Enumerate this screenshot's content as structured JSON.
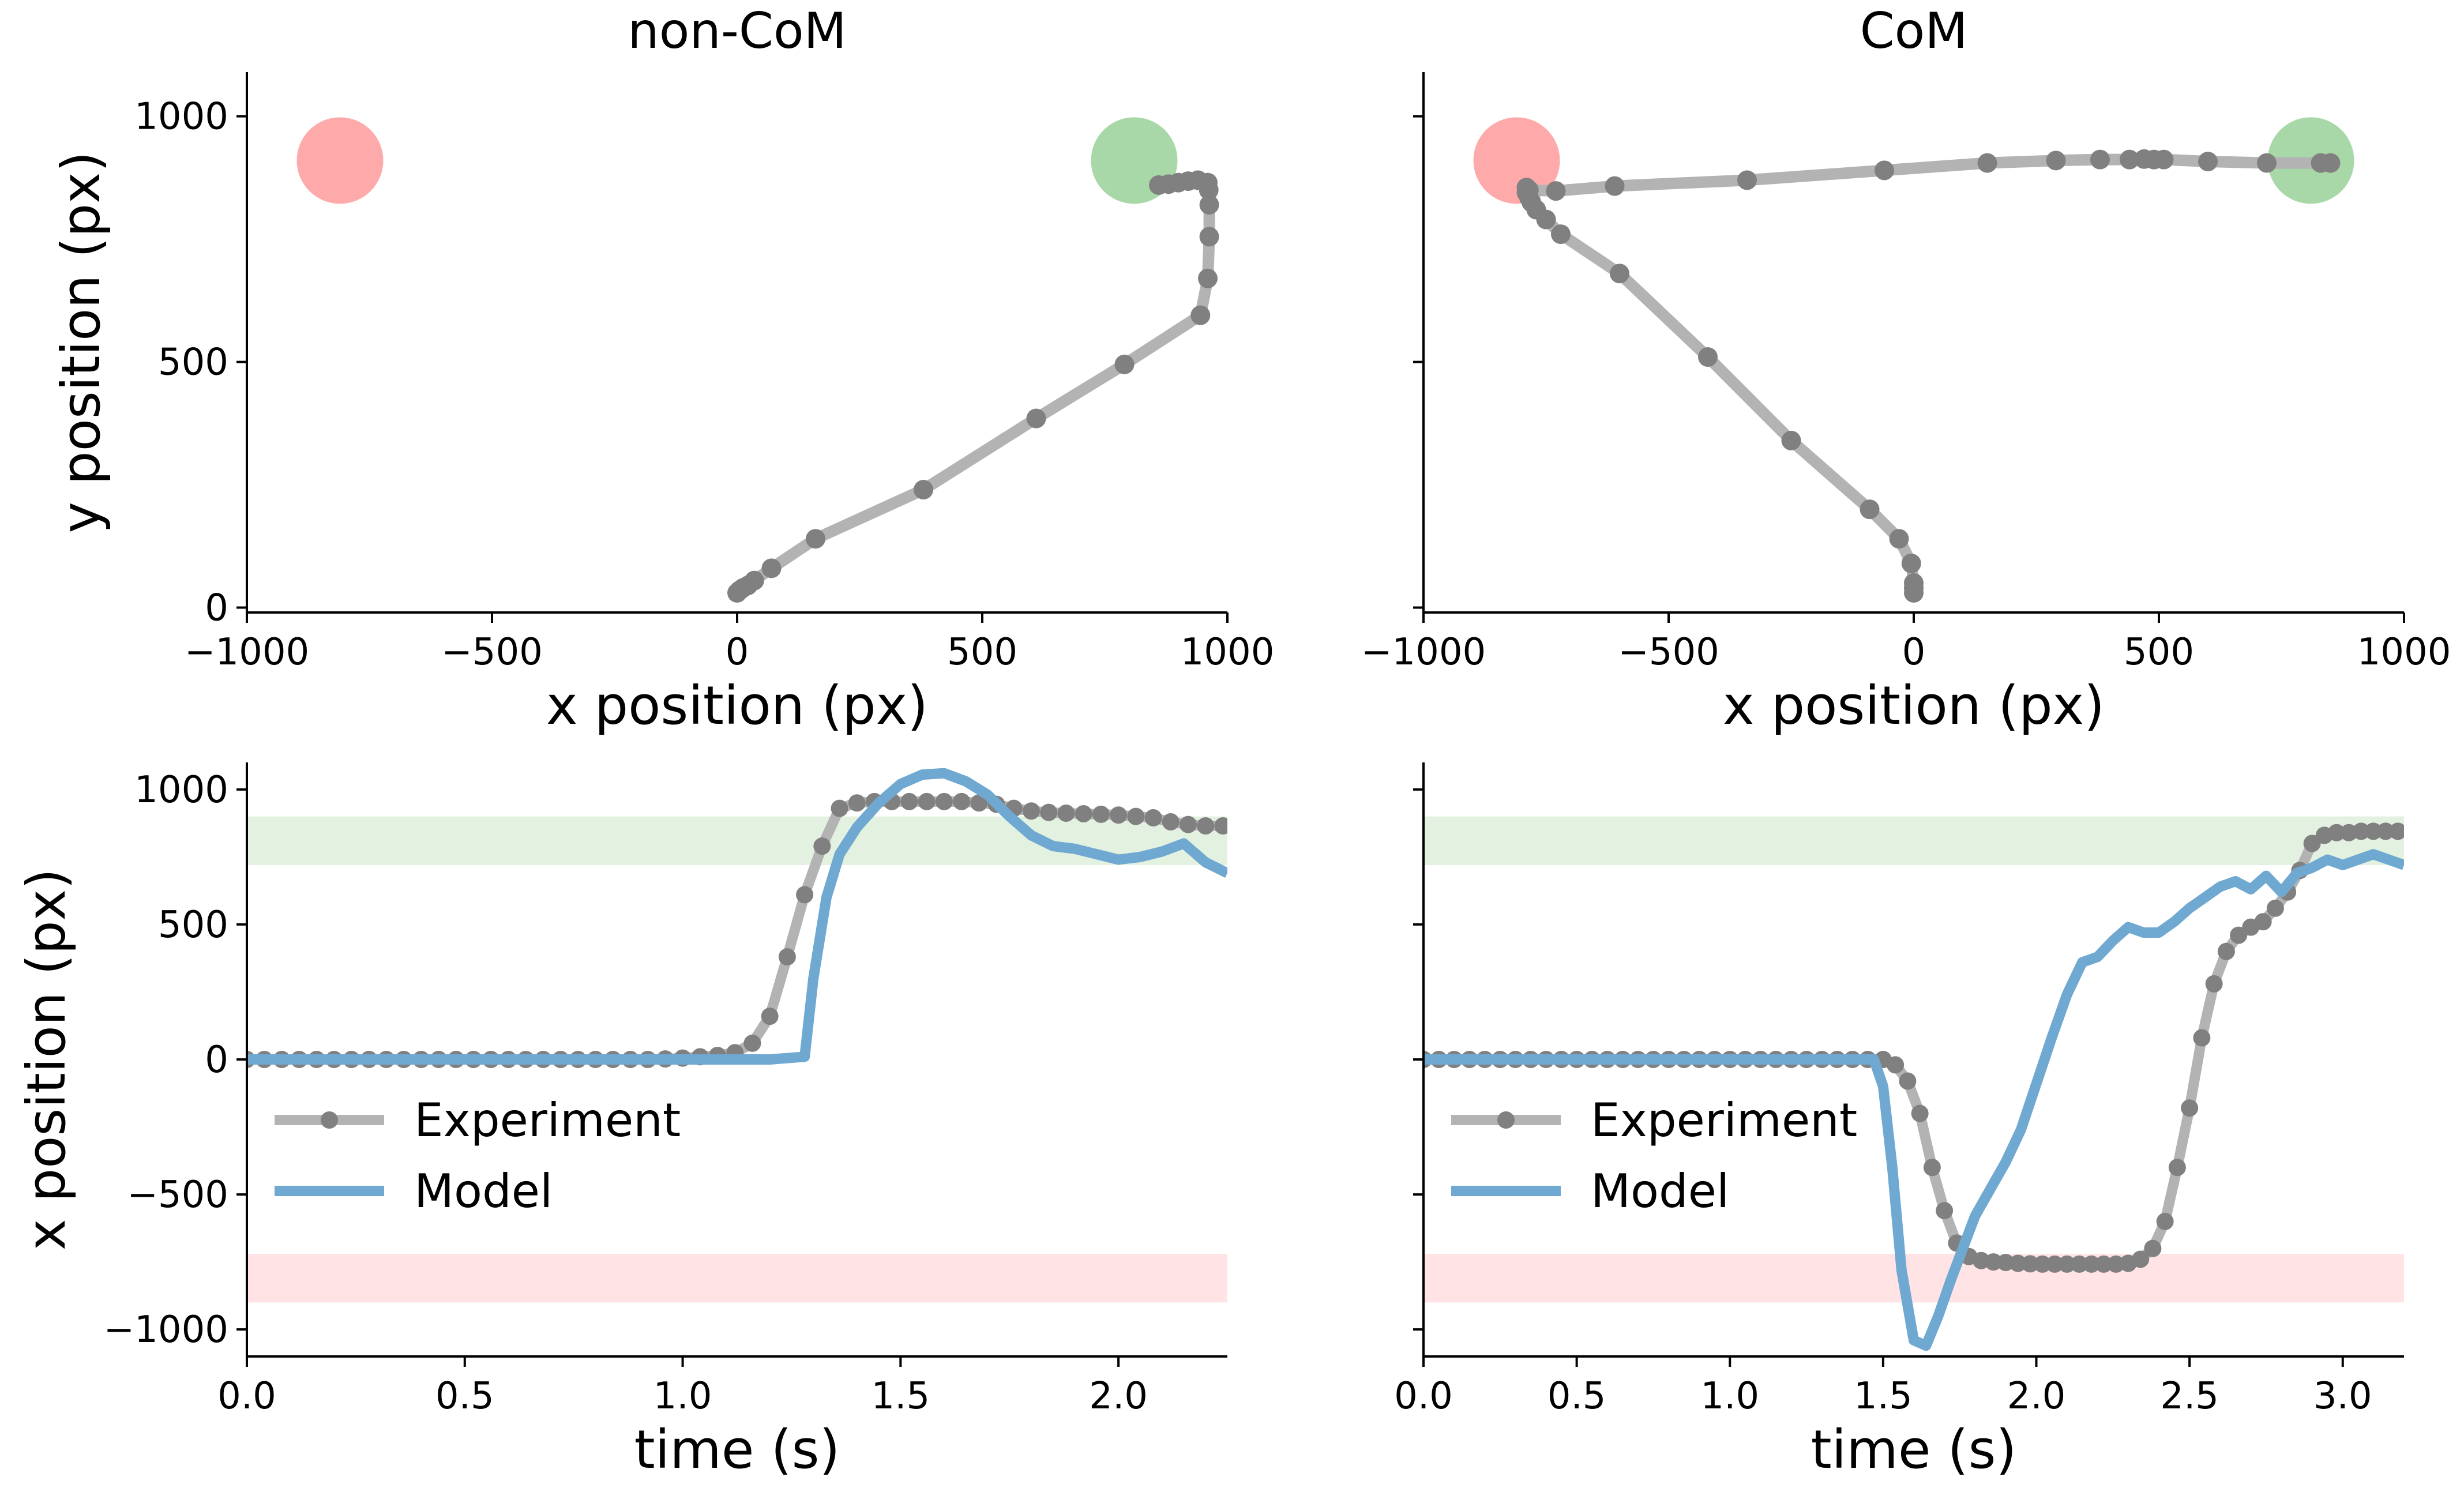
{
  "chart_data": [
    {
      "id": "top-left",
      "type": "line",
      "title": "non-CoM",
      "xlabel": "x position (px)",
      "ylabel": "y position (px)",
      "xlim": [
        -1000,
        1000
      ],
      "ylim": [
        -10,
        1090
      ],
      "xticks": [
        -1000,
        -500,
        0,
        500,
        1000
      ],
      "xtick_labels": [
        "−1000",
        "−500",
        "0",
        "500",
        "1000"
      ],
      "yticks": [
        0,
        500,
        1000
      ],
      "ytick_labels": [
        "0",
        "500",
        "1000"
      ],
      "targets": [
        {
          "kind": "distractor",
          "x": -810,
          "y": 910,
          "color": "#ffaaaa"
        },
        {
          "kind": "correct",
          "x": 810,
          "y": 910,
          "color": "#a8d8a8"
        }
      ],
      "series": [
        {
          "x": [
            0,
            5,
            12,
            22,
            35,
            70,
            160,
            380,
            610,
            790,
            945,
            960,
            963,
            963,
            962,
            960,
            940,
            920,
            900,
            880,
            860
          ],
          "y": [
            30,
            35,
            40,
            45,
            55,
            80,
            140,
            240,
            385,
            495,
            595,
            670,
            755,
            820,
            850,
            865,
            870,
            868,
            865,
            862,
            860
          ],
          "color": "#808080"
        }
      ]
    },
    {
      "id": "top-right",
      "type": "line",
      "title": "CoM",
      "xlabel": "x position (px)",
      "ylabel": "",
      "xlim": [
        -1000,
        1000
      ],
      "ylim": [
        -10,
        1090
      ],
      "xticks": [
        -1000,
        -500,
        0,
        500,
        1000
      ],
      "xtick_labels": [
        "−1000",
        "−500",
        "0",
        "500",
        "1000"
      ],
      "yticks": [
        0,
        500,
        1000
      ],
      "ytick_labels": [
        "",
        "",
        ""
      ],
      "targets": [
        {
          "kind": "distractor",
          "x": -810,
          "y": 910,
          "color": "#ffaaaa"
        },
        {
          "kind": "correct",
          "x": 810,
          "y": 910,
          "color": "#a8d8a8"
        }
      ],
      "series": [
        {
          "x": [
            0,
            0,
            0,
            -5,
            -30,
            -90,
            -250,
            -420,
            -600,
            -720,
            -750,
            -770,
            -780,
            -785,
            -790,
            -790,
            -785,
            -730,
            -610,
            -340,
            -60,
            150,
            290,
            380,
            440,
            470,
            490,
            510,
            600,
            720,
            830,
            850
          ],
          "y": [
            30,
            40,
            50,
            90,
            140,
            200,
            340,
            510,
            680,
            760,
            790,
            810,
            825,
            835,
            845,
            855,
            850,
            848,
            858,
            870,
            890,
            905,
            910,
            912,
            912,
            913,
            912,
            912,
            908,
            905,
            905,
            905
          ],
          "color": "#808080"
        }
      ]
    },
    {
      "id": "bottom-left",
      "type": "line",
      "title": "",
      "xlabel": "time (s)",
      "ylabel": "x position (px)",
      "xlim": [
        0,
        2.25
      ],
      "ylim": [
        -1100,
        1100
      ],
      "xticks": [
        0,
        0.5,
        1.0,
        1.5,
        2.0
      ],
      "xtick_labels": [
        "0.0",
        "0.5",
        "1.0",
        "1.5",
        "2.0"
      ],
      "yticks": [
        -1000,
        -500,
        0,
        500,
        1000
      ],
      "ytick_labels": [
        "−1000",
        "−500",
        "0",
        "500",
        "1000"
      ],
      "bands": [
        {
          "kind": "correct",
          "y0": 720,
          "y1": 900,
          "color": "#e3f1e1"
        },
        {
          "kind": "distractor",
          "y0": -900,
          "y1": -720,
          "color": "#ffe3e5"
        }
      ],
      "legend": {
        "position": "lower-left",
        "entries": [
          "Experiment",
          "Model"
        ]
      },
      "series": [
        {
          "name": "Experiment",
          "color": "#808080",
          "x": [
            0,
            0.04,
            0.08,
            0.12,
            0.16,
            0.2,
            0.24,
            0.28,
            0.32,
            0.36,
            0.4,
            0.44,
            0.48,
            0.52,
            0.56,
            0.6,
            0.64,
            0.68,
            0.72,
            0.76,
            0.8,
            0.84,
            0.88,
            0.92,
            0.96,
            1.0,
            1.04,
            1.08,
            1.12,
            1.16,
            1.2,
            1.24,
            1.28,
            1.32,
            1.36,
            1.4,
            1.44,
            1.48,
            1.52,
            1.56,
            1.6,
            1.64,
            1.68,
            1.72,
            1.76,
            1.8,
            1.84,
            1.88,
            1.92,
            1.96,
            2.0,
            2.04,
            2.08,
            2.12,
            2.16,
            2.2,
            2.24
          ],
          "y": [
            0,
            0,
            0,
            0,
            0,
            0,
            0,
            0,
            0,
            0,
            0,
            0,
            0,
            0,
            0,
            0,
            0,
            0,
            0,
            0,
            0,
            0,
            0,
            0,
            2,
            5,
            10,
            15,
            25,
            60,
            160,
            380,
            610,
            790,
            930,
            950,
            955,
            955,
            955,
            955,
            955,
            955,
            950,
            945,
            930,
            920,
            915,
            912,
            910,
            908,
            905,
            900,
            895,
            880,
            870,
            865,
            865
          ]
        },
        {
          "name": "Model",
          "color": "#6fa8d0",
          "x": [
            0,
            0.5,
            1.0,
            1.2,
            1.28,
            1.3,
            1.33,
            1.36,
            1.4,
            1.45,
            1.5,
            1.55,
            1.6,
            1.65,
            1.7,
            1.75,
            1.8,
            1.85,
            1.9,
            1.95,
            2.0,
            2.05,
            2.1,
            2.15,
            2.2,
            2.25
          ],
          "y": [
            0,
            0,
            0,
            0,
            10,
            300,
            600,
            760,
            860,
            950,
            1020,
            1055,
            1060,
            1030,
            980,
            900,
            830,
            790,
            780,
            760,
            740,
            750,
            770,
            800,
            730,
            690
          ]
        }
      ]
    },
    {
      "id": "bottom-right",
      "type": "line",
      "title": "",
      "xlabel": "time (s)",
      "ylabel": "",
      "xlim": [
        0,
        3.2
      ],
      "ylim": [
        -1100,
        1100
      ],
      "xticks": [
        0,
        0.5,
        1.0,
        1.5,
        2.0,
        2.5,
        3.0
      ],
      "xtick_labels": [
        "0.0",
        "0.5",
        "1.0",
        "1.5",
        "2.0",
        "2.5",
        "3.0"
      ],
      "yticks": [
        -1000,
        -500,
        0,
        500,
        1000
      ],
      "ytick_labels": [
        "",
        "",
        "",
        "",
        ""
      ],
      "bands": [
        {
          "kind": "correct",
          "y0": 720,
          "y1": 900,
          "color": "#e3f1e1"
        },
        {
          "kind": "distractor",
          "y0": -900,
          "y1": -720,
          "color": "#ffe3e5"
        }
      ],
      "legend": {
        "position": "lower-left",
        "entries": [
          "Experiment",
          "Model"
        ]
      },
      "series": [
        {
          "name": "Experiment",
          "color": "#808080",
          "x": [
            0,
            0.05,
            0.1,
            0.15,
            0.2,
            0.25,
            0.3,
            0.35,
            0.4,
            0.45,
            0.5,
            0.55,
            0.6,
            0.65,
            0.7,
            0.75,
            0.8,
            0.85,
            0.9,
            0.95,
            1.0,
            1.05,
            1.1,
            1.15,
            1.2,
            1.25,
            1.3,
            1.35,
            1.4,
            1.45,
            1.5,
            1.54,
            1.58,
            1.62,
            1.66,
            1.7,
            1.74,
            1.78,
            1.82,
            1.86,
            1.9,
            1.94,
            1.98,
            2.02,
            2.06,
            2.1,
            2.14,
            2.18,
            2.22,
            2.26,
            2.3,
            2.34,
            2.38,
            2.42,
            2.46,
            2.5,
            2.54,
            2.58,
            2.62,
            2.66,
            2.7,
            2.74,
            2.78,
            2.82,
            2.86,
            2.9,
            2.94,
            2.98,
            3.02,
            3.06,
            3.1,
            3.14,
            3.18
          ],
          "y": [
            0,
            0,
            0,
            0,
            0,
            0,
            0,
            0,
            0,
            0,
            0,
            0,
            0,
            0,
            0,
            0,
            0,
            0,
            0,
            0,
            0,
            0,
            0,
            0,
            0,
            0,
            0,
            0,
            0,
            0,
            0,
            -20,
            -80,
            -200,
            -400,
            -560,
            -680,
            -730,
            -745,
            -750,
            -752,
            -755,
            -757,
            -758,
            -758,
            -758,
            -758,
            -758,
            -758,
            -758,
            -755,
            -740,
            -700,
            -600,
            -400,
            -180,
            80,
            280,
            400,
            460,
            490,
            510,
            560,
            620,
            700,
            800,
            830,
            840,
            840,
            845,
            845,
            845,
            845
          ]
        },
        {
          "name": "Model",
          "color": "#6fa8d0",
          "x": [
            0,
            0.5,
            1.0,
            1.47,
            1.5,
            1.53,
            1.56,
            1.6,
            1.64,
            1.68,
            1.72,
            1.76,
            1.8,
            1.85,
            1.9,
            1.95,
            2.0,
            2.05,
            2.1,
            2.15,
            2.2,
            2.25,
            2.3,
            2.35,
            2.4,
            2.45,
            2.5,
            2.55,
            2.6,
            2.65,
            2.7,
            2.75,
            2.8,
            2.85,
            2.9,
            2.95,
            3.0,
            3.05,
            3.1,
            3.15,
            3.2
          ],
          "y": [
            0,
            0,
            0,
            0,
            -100,
            -400,
            -780,
            -1040,
            -1060,
            -950,
            -820,
            -700,
            -580,
            -480,
            -380,
            -260,
            -90,
            80,
            240,
            360,
            380,
            440,
            490,
            470,
            470,
            510,
            560,
            600,
            640,
            660,
            630,
            680,
            620,
            690,
            710,
            740,
            720,
            740,
            760,
            740,
            720
          ]
        }
      ]
    }
  ]
}
